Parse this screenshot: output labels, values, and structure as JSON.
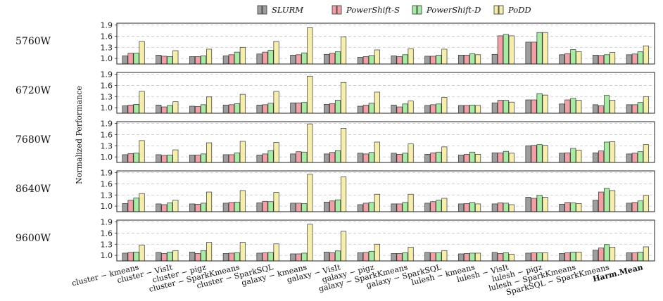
{
  "chart_data": {
    "type": "bar",
    "ylabel": "Normalized Performance",
    "ylim": [
      0.85,
      1.95
    ],
    "yticks": [
      1.0,
      1.3,
      1.6,
      1.9
    ],
    "grid": true,
    "legend_position": "top",
    "categories": [
      "cluster − kmeans",
      "cluster − VisIt",
      "cluster − pigz",
      "cluster − SparkKmeans",
      "cluster − SparkSQL",
      "galaxy − kmeans",
      "galaxy − VisIt",
      "galaxy − pigz",
      "galaxy − SparkKmeans",
      "galaxy − SparkSQL",
      "lulesh − kmeans",
      "lulesh − VisIt",
      "lulesh − pigz",
      "lulesh − SparkKmeans",
      "SparkSQL − SparkKmeans",
      "Harm.Mean"
    ],
    "series": [
      {
        "name": "SLURM",
        "color": "#9e9e9e"
      },
      {
        "name": "PowerShift-S",
        "color": "#f2a0a6"
      },
      {
        "name": "PowerShift-D",
        "color": "#a6eda3"
      },
      {
        "name": "PoDD",
        "color": "#f6eeab"
      }
    ],
    "panels": [
      {
        "label": "5760W",
        "values": [
          [
            1.07,
            1.14,
            1.14,
            1.46
          ],
          [
            1.09,
            1.06,
            1.05,
            1.21
          ],
          [
            1.05,
            1.05,
            1.07,
            1.25
          ],
          [
            1.07,
            1.1,
            1.17,
            1.3
          ],
          [
            1.12,
            1.17,
            1.22,
            1.46
          ],
          [
            1.09,
            1.1,
            1.15,
            1.83
          ],
          [
            1.11,
            1.14,
            1.18,
            1.58
          ],
          [
            1.03,
            1.05,
            1.08,
            1.23
          ],
          [
            1.07,
            1.05,
            1.1,
            1.26
          ],
          [
            1.06,
            1.06,
            1.09,
            1.25
          ],
          [
            1.09,
            1.09,
            1.13,
            1.1
          ],
          [
            1.11,
            1.61,
            1.65,
            1.61
          ],
          [
            1.44,
            1.44,
            1.7,
            1.7
          ],
          [
            1.1,
            1.13,
            1.24,
            1.18
          ],
          [
            1.09,
            1.08,
            1.1,
            1.16
          ],
          [
            1.1,
            1.12,
            1.18,
            1.34
          ]
        ]
      },
      {
        "label": "6720W",
        "values": [
          [
            1.05,
            1.07,
            1.09,
            1.44
          ],
          [
            1.07,
            1.02,
            1.06,
            1.16
          ],
          [
            1.04,
            1.03,
            1.08,
            1.29
          ],
          [
            1.07,
            1.08,
            1.11,
            1.36
          ],
          [
            1.07,
            1.08,
            1.12,
            1.44
          ],
          [
            1.13,
            1.13,
            1.14,
            1.85
          ],
          [
            1.09,
            1.11,
            1.2,
            1.68
          ],
          [
            1.04,
            1.07,
            1.12,
            1.42
          ],
          [
            1.07,
            1.02,
            1.1,
            1.18
          ],
          [
            1.06,
            1.08,
            1.1,
            1.28
          ],
          [
            1.06,
            1.06,
            1.07,
            1.06
          ],
          [
            1.13,
            1.2,
            1.2,
            1.15
          ],
          [
            1.21,
            1.21,
            1.38,
            1.34
          ],
          [
            1.1,
            1.21,
            1.25,
            1.2
          ],
          [
            1.08,
            1.05,
            1.33,
            1.2
          ],
          [
            1.08,
            1.08,
            1.14,
            1.3
          ]
        ]
      },
      {
        "label": "7680W",
        "values": [
          [
            1.06,
            1.09,
            1.1,
            1.44
          ],
          [
            1.06,
            1.04,
            1.05,
            1.19
          ],
          [
            1.05,
            1.05,
            1.08,
            1.38
          ],
          [
            1.06,
            1.06,
            1.11,
            1.42
          ],
          [
            1.05,
            1.08,
            1.17,
            1.39
          ],
          [
            1.08,
            1.14,
            1.13,
            1.89
          ],
          [
            1.08,
            1.12,
            1.17,
            1.77
          ],
          [
            1.1,
            1.08,
            1.12,
            1.4
          ],
          [
            1.1,
            1.07,
            1.1,
            1.35
          ],
          [
            1.07,
            1.11,
            1.13,
            1.27
          ],
          [
            1.05,
            1.07,
            1.13,
            1.07
          ],
          [
            1.11,
            1.11,
            1.15,
            1.1
          ],
          [
            1.3,
            1.31,
            1.33,
            1.31
          ],
          [
            1.1,
            1.11,
            1.23,
            1.18
          ],
          [
            1.11,
            1.16,
            1.4,
            1.41
          ],
          [
            1.08,
            1.1,
            1.14,
            1.33
          ]
        ]
      },
      {
        "label": "8640W",
        "values": [
          [
            1.07,
            1.16,
            1.22,
            1.34
          ],
          [
            1.06,
            1.04,
            1.09,
            1.16
          ],
          [
            1.06,
            1.05,
            1.08,
            1.38
          ],
          [
            1.08,
            1.1,
            1.11,
            1.42
          ],
          [
            1.09,
            1.13,
            1.12,
            1.37
          ],
          [
            1.08,
            1.08,
            1.07,
            1.86
          ],
          [
            1.11,
            1.14,
            1.17,
            1.79
          ],
          [
            1.04,
            1.08,
            1.1,
            1.32
          ],
          [
            1.06,
            1.06,
            1.1,
            1.32
          ],
          [
            1.08,
            1.12,
            1.16,
            1.21
          ],
          [
            1.06,
            1.07,
            1.1,
            1.06
          ],
          [
            1.06,
            1.09,
            1.08,
            1.04
          ],
          [
            1.24,
            1.21,
            1.29,
            1.24
          ],
          [
            1.05,
            1.1,
            1.09,
            1.07
          ],
          [
            1.16,
            1.38,
            1.48,
            1.42
          ],
          [
            1.08,
            1.1,
            1.14,
            1.29
          ]
        ]
      },
      {
        "label": "9600W",
        "values": [
          [
            1.06,
            1.08,
            1.09,
            1.28
          ],
          [
            1.08,
            1.05,
            1.09,
            1.13
          ],
          [
            1.09,
            1.05,
            1.13,
            1.35
          ],
          [
            1.05,
            1.06,
            1.07,
            1.35
          ],
          [
            1.06,
            1.07,
            1.08,
            1.31
          ],
          [
            1.04,
            1.04,
            1.06,
            1.84
          ],
          [
            1.09,
            1.07,
            1.12,
            1.65
          ],
          [
            1.07,
            1.08,
            1.11,
            1.3
          ],
          [
            1.05,
            1.05,
            1.07,
            1.22
          ],
          [
            1.08,
            1.07,
            1.07,
            1.13
          ],
          [
            1.04,
            1.05,
            1.06,
            1.06
          ],
          [
            1.08,
            1.05,
            1.07,
            1.03
          ],
          [
            1.06,
            1.07,
            1.07,
            1.07
          ],
          [
            1.05,
            1.07,
            1.09,
            1.09
          ],
          [
            1.14,
            1.2,
            1.29,
            1.22
          ],
          [
            1.07,
            1.07,
            1.09,
            1.23
          ]
        ]
      }
    ]
  }
}
